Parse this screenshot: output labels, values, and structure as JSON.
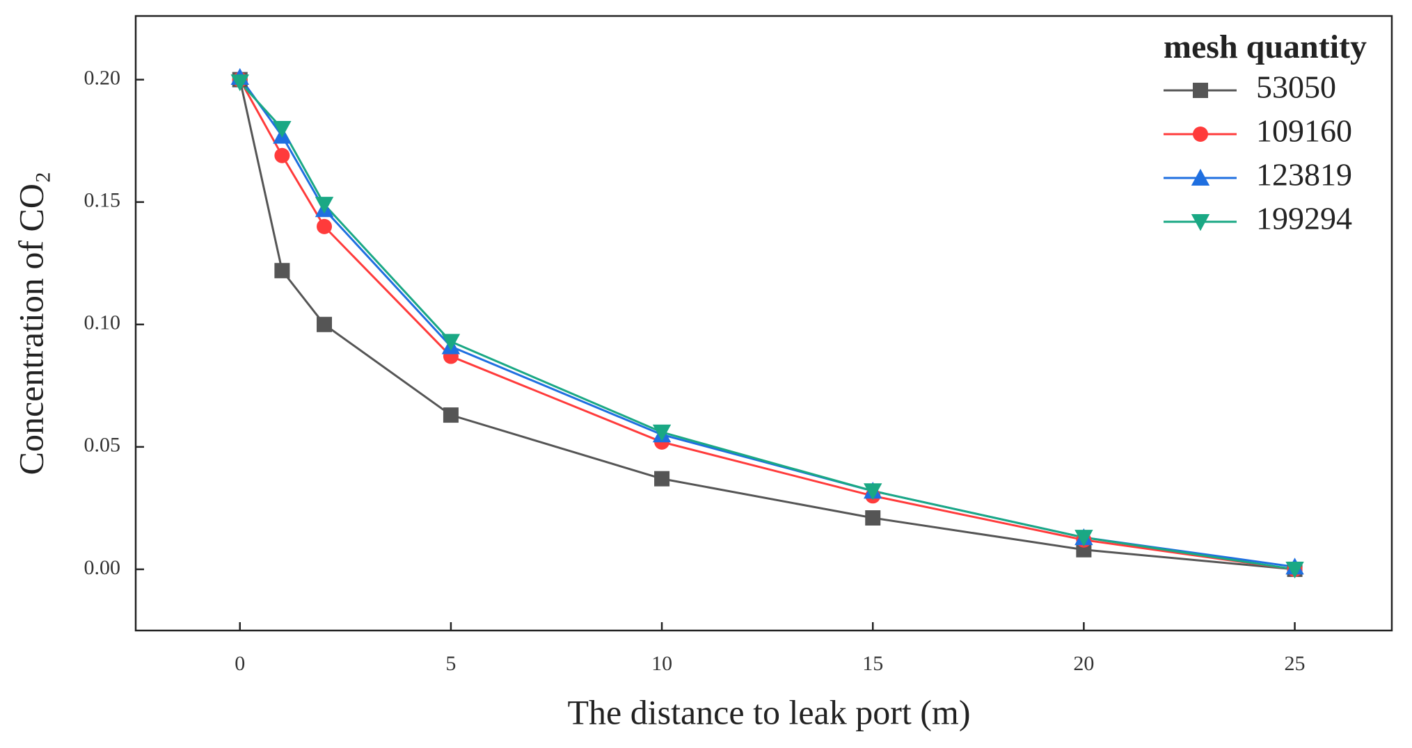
{
  "chart_data": {
    "type": "line",
    "x_label": "The distance to leak port (m)",
    "y_label": "Concentration of CO₂",
    "legend_title": "mesh quantity",
    "legend_position": "upper right",
    "x": [
      0,
      1,
      2,
      5,
      10,
      15,
      20,
      25
    ],
    "series": [
      {
        "name": "53050",
        "color": "#555555",
        "marker": "square",
        "values": [
          0.2,
          0.122,
          0.1,
          0.063,
          0.037,
          0.021,
          0.008,
          0.0
        ]
      },
      {
        "name": "109160",
        "color": "#ff3b3b",
        "marker": "circle",
        "values": [
          0.2,
          0.169,
          0.14,
          0.087,
          0.052,
          0.03,
          0.012,
          0.0
        ]
      },
      {
        "name": "123819",
        "color": "#1f6fe0",
        "marker": "triangle-up",
        "values": [
          0.201,
          0.177,
          0.147,
          0.091,
          0.055,
          0.032,
          0.013,
          0.001
        ]
      },
      {
        "name": "199294",
        "color": "#1aa884",
        "marker": "triangle-down",
        "values": [
          0.199,
          0.18,
          0.149,
          0.093,
          0.056,
          0.032,
          0.013,
          0.0
        ]
      }
    ],
    "xlim": [
      -2.47,
      27.3
    ],
    "ylim": [
      -0.025,
      0.226
    ],
    "xticks": [
      0,
      5,
      10,
      15,
      20,
      25
    ],
    "yticks": [
      {
        "value": 0.0,
        "label": "0.00"
      },
      {
        "value": 0.05,
        "label": "0.05"
      },
      {
        "value": 0.1,
        "label": "0.10"
      },
      {
        "value": 0.15,
        "label": "0.15"
      },
      {
        "value": 0.2,
        "label": "0.20"
      }
    ],
    "grid": false
  }
}
